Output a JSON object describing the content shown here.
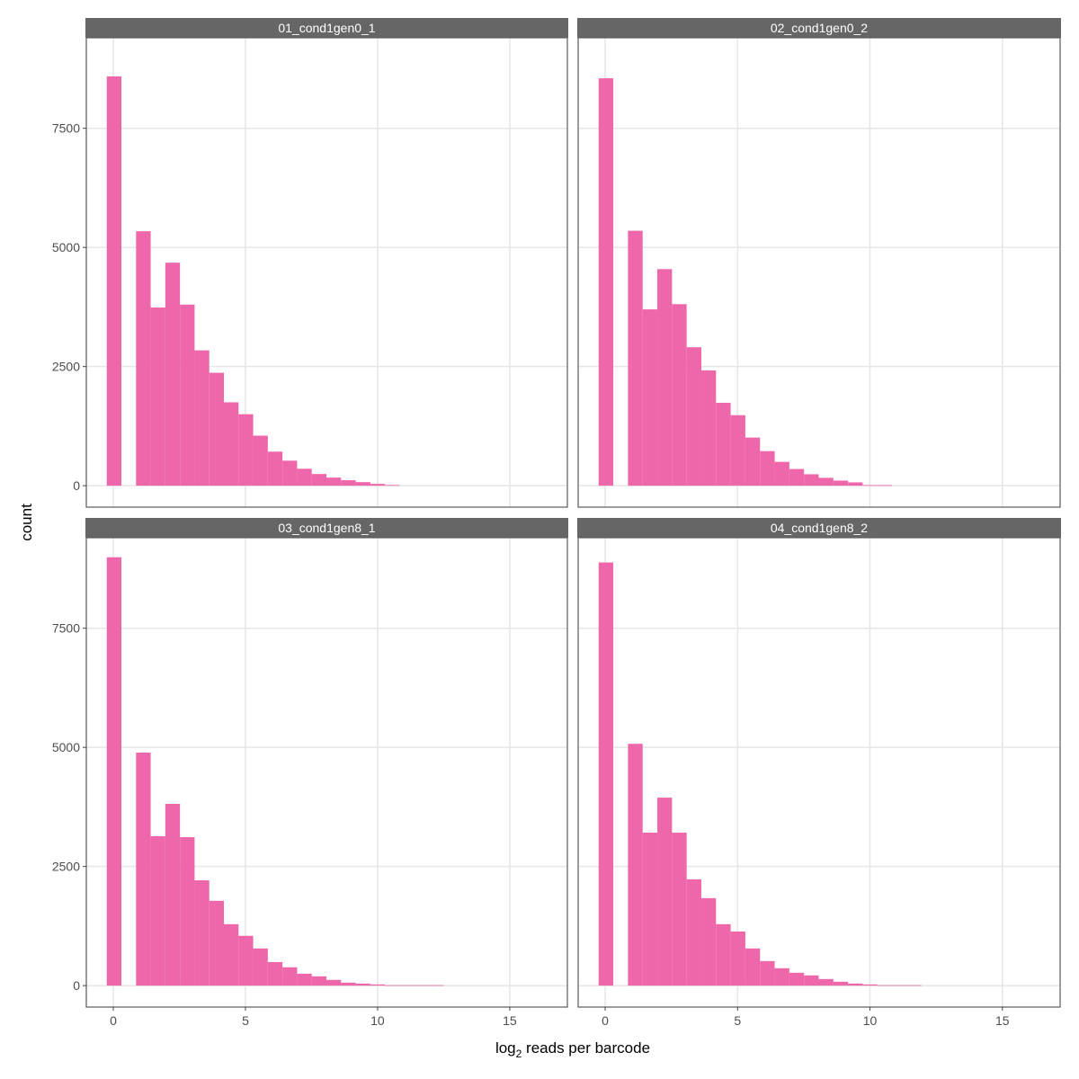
{
  "chart_data": {
    "type": "bar",
    "subtype": "faceted-histogram",
    "xlabel": "log2 reads per barcode",
    "xlabel_parts": {
      "pre": "log",
      "sub": "2",
      "post": " reads per barcode"
    },
    "ylabel": "count",
    "xlim": [
      -1.02,
      17.18
    ],
    "ylim": [
      -450,
      9400
    ],
    "xticks": [
      0,
      5,
      10,
      15
    ],
    "xtick_labels": [
      "0",
      "5",
      "10",
      "15"
    ],
    "yticks": [
      0,
      2500,
      5000,
      7500
    ],
    "ytick_labels": [
      "0",
      "2500",
      "5000",
      "7500"
    ],
    "grid": true,
    "bin_width": 0.554,
    "bar_color": "#ee62a8",
    "strip_color": "#666666",
    "facets": [
      {
        "name": "01_cond1gen0_1",
        "values": [
          8590,
          0,
          5340,
          3740,
          4680,
          3800,
          2840,
          2370,
          1750,
          1500,
          1050,
          715,
          525,
          355,
          245,
          170,
          115,
          75,
          38,
          15
        ]
      },
      {
        "name": "02_cond1gen0_2",
        "values": [
          8550,
          0,
          5350,
          3700,
          4545,
          3810,
          2905,
          2420,
          1740,
          1480,
          1010,
          725,
          500,
          350,
          240,
          165,
          107,
          70,
          13,
          13
        ]
      },
      {
        "name": "03_cond1gen8_1",
        "values": [
          8990,
          0,
          4890,
          3135,
          3815,
          3115,
          2210,
          1780,
          1290,
          1045,
          780,
          495,
          385,
          250,
          195,
          120,
          62,
          43,
          25,
          10,
          10,
          10,
          10
        ]
      },
      {
        "name": "04_cond1gen8_2",
        "values": [
          8880,
          0,
          5075,
          3210,
          3945,
          3210,
          2230,
          1835,
          1290,
          1135,
          780,
          515,
          365,
          270,
          215,
          138,
          82,
          44,
          25,
          10,
          10,
          10
        ]
      }
    ]
  }
}
